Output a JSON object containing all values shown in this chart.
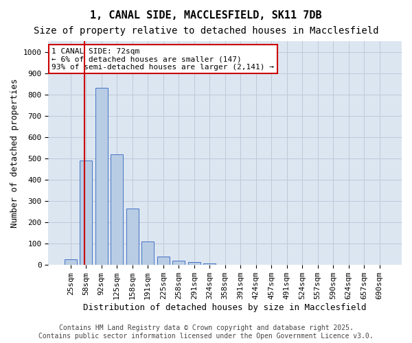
{
  "title": "1, CANAL SIDE, MACCLESFIELD, SK11 7DB",
  "subtitle": "Size of property relative to detached houses in Macclesfield",
  "xlabel": "Distribution of detached houses by size in Macclesfield",
  "ylabel": "Number of detached properties",
  "bar_values": [
    25,
    490,
    830,
    520,
    265,
    110,
    38,
    20,
    12,
    7,
    0,
    0,
    0,
    0,
    0,
    0,
    0,
    0,
    0,
    0,
    0
  ],
  "bar_labels": [
    "25sqm",
    "58sqm",
    "92sqm",
    "125sqm",
    "158sqm",
    "191sqm",
    "225sqm",
    "258sqm",
    "291sqm",
    "324sqm",
    "358sqm",
    "391sqm",
    "424sqm",
    "457sqm",
    "491sqm",
    "524sqm",
    "557sqm",
    "590sqm",
    "624sqm",
    "657sqm",
    "690sqm"
  ],
  "bar_color": "#b8cce4",
  "bar_edge_color": "#4472c4",
  "bar_width": 0.8,
  "ylim": [
    0,
    1050
  ],
  "yticks": [
    0,
    100,
    200,
    300,
    400,
    500,
    600,
    700,
    800,
    900,
    1000
  ],
  "grid_color": "#c0c8d8",
  "background_color": "#dce6f1",
  "annotation_text": "1 CANAL SIDE: 72sqm\n← 6% of detached houses are smaller (147)\n93% of semi-detached houses are larger (2,141) →",
  "annotation_box_color": "#ffffff",
  "annotation_box_edge": "#cc0000",
  "vline_color": "#cc0000",
  "footer_text": "Contains HM Land Registry data © Crown copyright and database right 2025.\nContains public sector information licensed under the Open Government Licence v3.0.",
  "title_fontsize": 11,
  "subtitle_fontsize": 10,
  "axis_label_fontsize": 9,
  "tick_fontsize": 8,
  "annotation_fontsize": 8
}
